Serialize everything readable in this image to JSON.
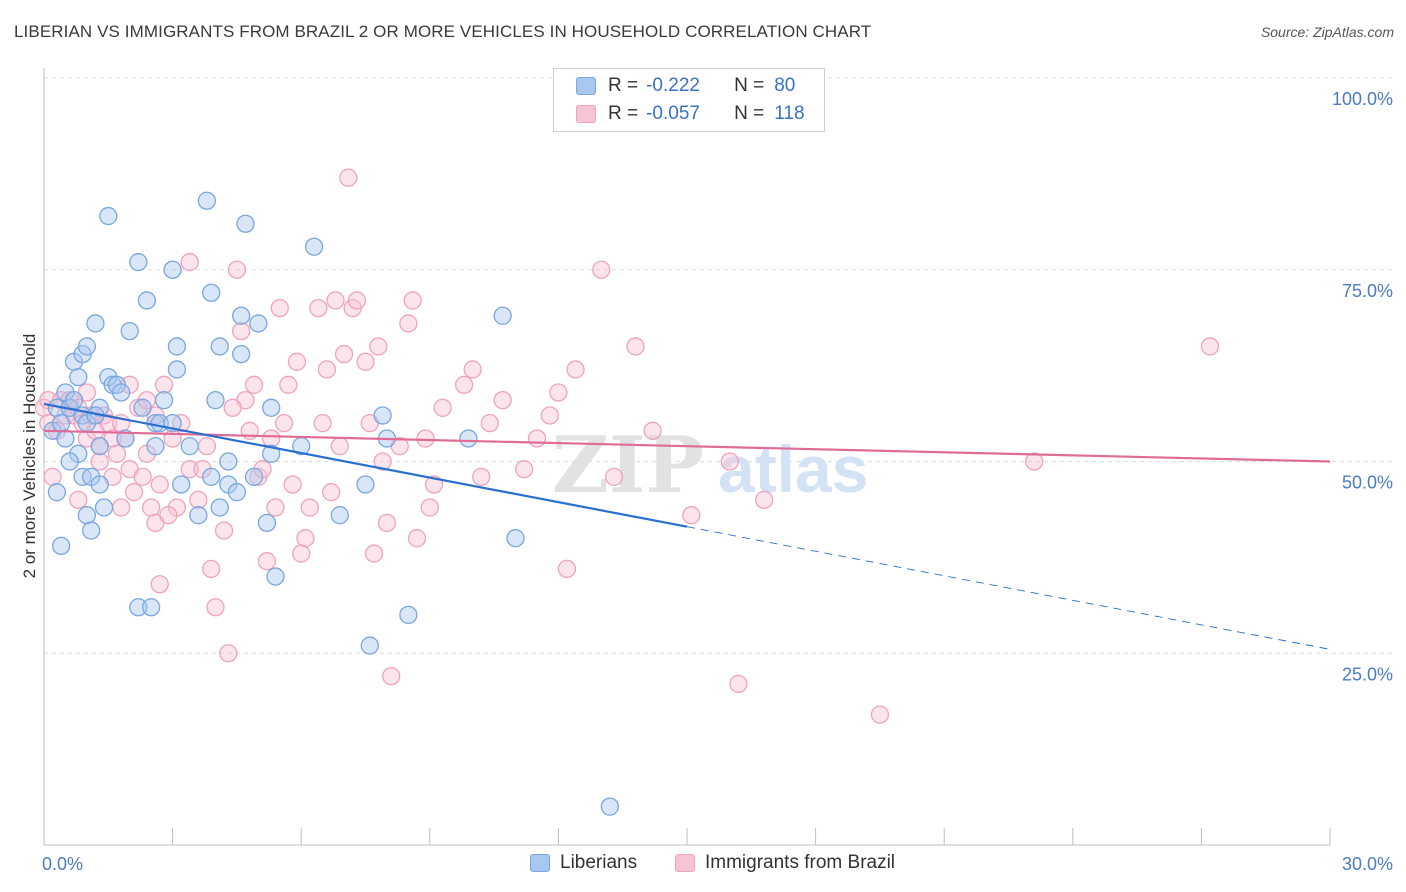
{
  "chart_data": {
    "type": "scatter",
    "title": "LIBERIAN VS IMMIGRANTS FROM BRAZIL 2 OR MORE VEHICLES IN HOUSEHOLD CORRELATION CHART",
    "source": "Source: ZipAtlas.com",
    "xlabel": "",
    "ylabel": "2 or more Vehicles in Household",
    "xlim": [
      0,
      30
    ],
    "ylim": [
      0,
      100
    ],
    "x_tick_labels": {
      "min": "0.0%",
      "max": "30.0%"
    },
    "y_ticks": [
      {
        "value": 100,
        "label": "100.0%"
      },
      {
        "value": 75,
        "label": "75.0%"
      },
      {
        "value": 50,
        "label": "50.0%"
      },
      {
        "value": 25,
        "label": "25.0%"
      }
    ],
    "watermark": {
      "zip": "ZIP",
      "atlas": "atlas"
    },
    "legend": {
      "r_label": "R =",
      "n_label": "N =",
      "entries": [
        {
          "r": "-0.222",
          "n": "80"
        },
        {
          "r": "-0.057",
          "n": "118"
        }
      ]
    },
    "series": [
      {
        "name": "Liberians",
        "color": "#7aa7e0",
        "fill": "#a9c8ef",
        "line_color": "#2a6fd0",
        "trend": {
          "x0": 0,
          "y0": 57.5,
          "x1": 15,
          "y1": 41.5,
          "x_dash_end": 30,
          "y_dash_end": 25.5
        },
        "points": [
          [
            0.2,
            54
          ],
          [
            0.3,
            57
          ],
          [
            0.4,
            55
          ],
          [
            0.5,
            59
          ],
          [
            0.5,
            53
          ],
          [
            0.6,
            57
          ],
          [
            0.7,
            58
          ],
          [
            0.8,
            51
          ],
          [
            0.9,
            56
          ],
          [
            1.0,
            55
          ],
          [
            0.3,
            46
          ],
          [
            0.4,
            39
          ],
          [
            0.6,
            50
          ],
          [
            0.9,
            48
          ],
          [
            1.0,
            43
          ],
          [
            1.1,
            41
          ],
          [
            1.1,
            48
          ],
          [
            1.3,
            47
          ],
          [
            1.3,
            52
          ],
          [
            1.4,
            44
          ],
          [
            0.7,
            63
          ],
          [
            0.9,
            64
          ],
          [
            1.0,
            65
          ],
          [
            1.2,
            68
          ],
          [
            1.3,
            57
          ],
          [
            1.5,
            61
          ],
          [
            1.6,
            60
          ],
          [
            1.7,
            60
          ],
          [
            1.9,
            53
          ],
          [
            2.0,
            67
          ],
          [
            1.5,
            82
          ],
          [
            2.2,
            76
          ],
          [
            2.4,
            71
          ],
          [
            3.0,
            75
          ],
          [
            3.1,
            62
          ],
          [
            3.1,
            65
          ],
          [
            3.2,
            47
          ],
          [
            3.4,
            52
          ],
          [
            3.6,
            43
          ],
          [
            3.9,
            48
          ],
          [
            2.2,
            31
          ],
          [
            2.5,
            31
          ],
          [
            2.6,
            52
          ],
          [
            2.6,
            55
          ],
          [
            2.7,
            55
          ],
          [
            3.8,
            84
          ],
          [
            3.9,
            72
          ],
          [
            4.0,
            58
          ],
          [
            4.1,
            65
          ],
          [
            4.3,
            47
          ],
          [
            4.1,
            44
          ],
          [
            4.3,
            50
          ],
          [
            4.5,
            46
          ],
          [
            4.6,
            64
          ],
          [
            4.6,
            69
          ],
          [
            4.7,
            81
          ],
          [
            5.0,
            68
          ],
          [
            5.3,
            57
          ],
          [
            5.3,
            51
          ],
          [
            5.4,
            35
          ],
          [
            5.2,
            42
          ],
          [
            6.3,
            78
          ],
          [
            6.9,
            43
          ],
          [
            7.5,
            47
          ],
          [
            7.6,
            26
          ],
          [
            7.9,
            56
          ],
          [
            8.0,
            53
          ],
          [
            8.5,
            30
          ],
          [
            9.9,
            53
          ],
          [
            10.7,
            69
          ],
          [
            11.0,
            40
          ],
          [
            13.2,
            5
          ],
          [
            1.8,
            59
          ],
          [
            2.3,
            57
          ],
          [
            1.2,
            56
          ],
          [
            0.8,
            61
          ],
          [
            3.0,
            55
          ],
          [
            2.8,
            58
          ],
          [
            4.9,
            48
          ],
          [
            6.0,
            52
          ]
        ]
      },
      {
        "name": "Immigrants from Brazil",
        "color": "#f0a3bd",
        "fill": "#f7c4d5",
        "line_color": "#e06b96",
        "trend": {
          "x0": 0,
          "y0": 54,
          "x1": 30,
          "y1": 50
        },
        "points": [
          [
            0.0,
            57
          ],
          [
            0.1,
            58
          ],
          [
            0.2,
            48
          ],
          [
            0.3,
            54
          ],
          [
            0.4,
            58
          ],
          [
            0.5,
            56
          ],
          [
            0.6,
            58
          ],
          [
            0.7,
            56
          ],
          [
            0.8,
            57
          ],
          [
            0.9,
            55
          ],
          [
            1.0,
            53
          ],
          [
            1.1,
            56
          ],
          [
            1.2,
            54
          ],
          [
            1.3,
            52
          ],
          [
            1.4,
            56
          ],
          [
            1.5,
            55
          ],
          [
            1.6,
            53
          ],
          [
            1.7,
            51
          ],
          [
            1.8,
            55
          ],
          [
            1.9,
            53
          ],
          [
            0.8,
            45
          ],
          [
            1.3,
            50
          ],
          [
            1.6,
            48
          ],
          [
            1.8,
            44
          ],
          [
            2.0,
            49
          ],
          [
            2.1,
            46
          ],
          [
            2.3,
            48
          ],
          [
            2.5,
            44
          ],
          [
            2.6,
            42
          ],
          [
            2.7,
            47
          ],
          [
            2.0,
            60
          ],
          [
            2.2,
            57
          ],
          [
            2.4,
            58
          ],
          [
            2.6,
            56
          ],
          [
            2.8,
            60
          ],
          [
            3.0,
            53
          ],
          [
            3.2,
            55
          ],
          [
            3.4,
            49
          ],
          [
            3.6,
            45
          ],
          [
            3.8,
            52
          ],
          [
            2.7,
            34
          ],
          [
            3.1,
            44
          ],
          [
            3.4,
            76
          ],
          [
            3.9,
            36
          ],
          [
            4.0,
            31
          ],
          [
            4.2,
            41
          ],
          [
            4.3,
            25
          ],
          [
            4.5,
            75
          ],
          [
            4.6,
            67
          ],
          [
            4.7,
            58
          ],
          [
            4.8,
            54
          ],
          [
            4.9,
            60
          ],
          [
            5.0,
            48
          ],
          [
            5.1,
            49
          ],
          [
            5.2,
            37
          ],
          [
            5.4,
            44
          ],
          [
            5.5,
            70
          ],
          [
            5.6,
            55
          ],
          [
            5.7,
            60
          ],
          [
            5.8,
            47
          ],
          [
            5.9,
            63
          ],
          [
            6.0,
            38
          ],
          [
            6.1,
            40
          ],
          [
            6.2,
            44
          ],
          [
            6.4,
            70
          ],
          [
            6.5,
            55
          ],
          [
            6.6,
            62
          ],
          [
            6.8,
            71
          ],
          [
            6.9,
            52
          ],
          [
            7.0,
            64
          ],
          [
            7.1,
            87
          ],
          [
            7.2,
            70
          ],
          [
            7.3,
            71
          ],
          [
            7.5,
            63
          ],
          [
            7.6,
            55
          ],
          [
            7.7,
            38
          ],
          [
            7.8,
            65
          ],
          [
            8.0,
            42
          ],
          [
            8.1,
            22
          ],
          [
            8.3,
            52
          ],
          [
            8.5,
            68
          ],
          [
            8.6,
            71
          ],
          [
            8.7,
            40
          ],
          [
            8.9,
            53
          ],
          [
            9.0,
            44
          ],
          [
            9.3,
            57
          ],
          [
            9.8,
            60
          ],
          [
            10.0,
            62
          ],
          [
            10.2,
            48
          ],
          [
            10.4,
            55
          ],
          [
            10.7,
            58
          ],
          [
            11.2,
            49
          ],
          [
            11.5,
            53
          ],
          [
            11.8,
            56
          ],
          [
            12.0,
            59
          ],
          [
            12.2,
            36
          ],
          [
            12.4,
            62
          ],
          [
            13.0,
            75
          ],
          [
            13.3,
            48
          ],
          [
            13.8,
            65
          ],
          [
            14.2,
            54
          ],
          [
            15.1,
            43
          ],
          [
            16.0,
            50
          ],
          [
            16.2,
            21
          ],
          [
            16.8,
            45
          ],
          [
            19.5,
            17
          ],
          [
            23.1,
            50
          ],
          [
            27.2,
            65
          ],
          [
            0.1,
            55
          ],
          [
            2.9,
            43
          ],
          [
            9.1,
            47
          ],
          [
            3.7,
            49
          ],
          [
            6.7,
            46
          ],
          [
            5.3,
            53
          ],
          [
            4.4,
            57
          ],
          [
            7.9,
            50
          ],
          [
            1.0,
            59
          ],
          [
            2.4,
            51
          ]
        ]
      }
    ]
  }
}
